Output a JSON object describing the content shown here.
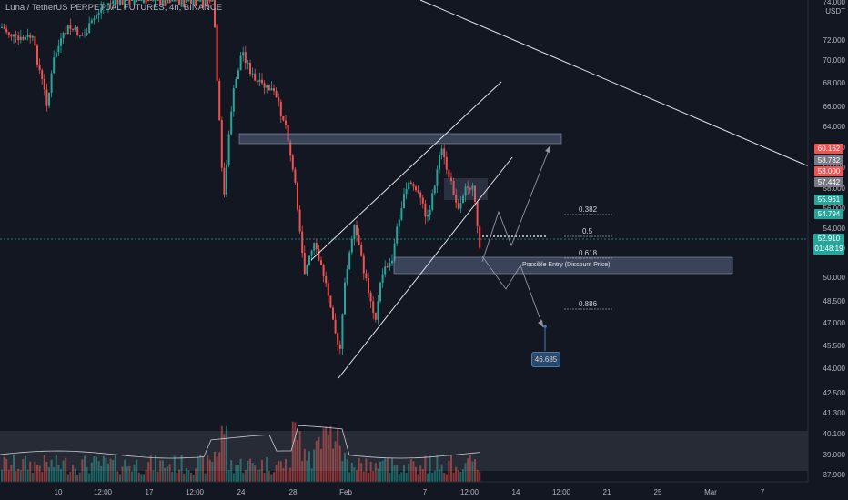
{
  "header": {
    "title": "Luna / TetherUS PERPETUAL FUTURES, 4h, BINANCE"
  },
  "price_axis": {
    "currency": "USDT",
    "labels": [
      "74.000",
      "72.000",
      "70.000",
      "68.000",
      "66.000",
      "64.000",
      "62.000",
      "60.000",
      "58.000",
      "56.000",
      "54.000",
      "52.000",
      "50.000",
      "48.500",
      "47.000",
      "45.500",
      "44.000",
      "42.500",
      "41.300",
      "40.100",
      "39.000",
      "37.900"
    ]
  },
  "price_tags": {
    "tag1": "60.162",
    "tag2": "58.732",
    "tag3": "58.000",
    "tag4": "57.442",
    "tag5": "55.961",
    "tag6": "54.794",
    "current_price": "52.910",
    "countdown": "01:48:19"
  },
  "time_axis": {
    "labels": [
      "10",
      "12:00",
      "17",
      "12:00",
      "24",
      "28",
      "Feb",
      "7",
      "12:00",
      "14",
      "12:00",
      "21",
      "25",
      "Mar",
      "7"
    ]
  },
  "fib_levels": {
    "f382": "0.382",
    "f5": "0.5",
    "f618": "0.618",
    "f886": "0.886"
  },
  "annotations": {
    "entry_zone": "Possible Entry (Discount Price)",
    "target": "46.685"
  },
  "colors": {
    "background": "#131722",
    "bull": "#26a69a",
    "bear": "#ef5350",
    "current_line": "#26a69a"
  }
}
